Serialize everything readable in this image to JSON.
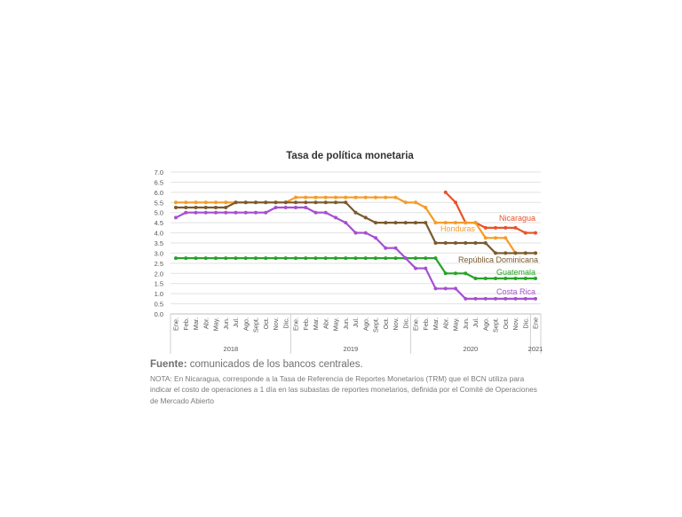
{
  "chart_data": {
    "type": "line",
    "title": "Tasa de política monetaria",
    "xlabel": "",
    "ylabel": "",
    "ylim": [
      0,
      7
    ],
    "yticks": [
      "0.0",
      "0.5",
      "1.0",
      "1.5",
      "2.0",
      "2.5",
      "3.0",
      "3.5",
      "4.0",
      "4.5",
      "5.0",
      "5.5",
      "6.0",
      "6.5",
      "7.0"
    ],
    "grid": true,
    "categories": [
      "Ene.",
      "Feb.",
      "Mar.",
      "Abr.",
      "May.",
      "Jun.",
      "Jul.",
      "Ago.",
      "Sept.",
      "Oct.",
      "Nov.",
      "Dic.",
      "Ene.",
      "Feb.",
      "Mar.",
      "Abr.",
      "May.",
      "Jun.",
      "Jul.",
      "Ago.",
      "Sept.",
      "Oct.",
      "Nov.",
      "Dic.",
      "Ene.",
      "Feb.",
      "Mar.",
      "Abr.",
      "May.",
      "Jun.",
      "Jul.",
      "Ago.",
      "Sept.",
      "Oct.",
      "Nov.",
      "Dic.",
      "Ene"
    ],
    "years": [
      "2018",
      "2019",
      "2020",
      "2021"
    ],
    "series": [
      {
        "name": "Nicaragua",
        "color": "#e8522a",
        "values": [
          null,
          null,
          null,
          null,
          null,
          null,
          null,
          null,
          null,
          null,
          null,
          null,
          null,
          null,
          null,
          null,
          null,
          null,
          null,
          null,
          null,
          null,
          null,
          null,
          null,
          null,
          null,
          6.0,
          5.5,
          4.5,
          4.5,
          4.25,
          4.25,
          4.25,
          4.25,
          4.0,
          4.0
        ]
      },
      {
        "name": "Honduras",
        "color": "#f39c29",
        "values": [
          5.5,
          5.5,
          5.5,
          5.5,
          5.5,
          5.5,
          5.5,
          5.5,
          5.5,
          5.5,
          5.5,
          5.5,
          5.75,
          5.75,
          5.75,
          5.75,
          5.75,
          5.75,
          5.75,
          5.75,
          5.75,
          5.75,
          5.75,
          5.5,
          5.5,
          5.25,
          4.5,
          4.5,
          4.5,
          4.5,
          4.5,
          3.75,
          3.75,
          3.75,
          3.0,
          3.0,
          3.0
        ]
      },
      {
        "name": "República Dominicana",
        "color": "#7a5a2e",
        "values": [
          5.25,
          5.25,
          5.25,
          5.25,
          5.25,
          5.25,
          5.5,
          5.5,
          5.5,
          5.5,
          5.5,
          5.5,
          5.5,
          5.5,
          5.5,
          5.5,
          5.5,
          5.5,
          5.0,
          4.75,
          4.5,
          4.5,
          4.5,
          4.5,
          4.5,
          4.5,
          3.5,
          3.5,
          3.5,
          3.5,
          3.5,
          3.5,
          3.0,
          3.0,
          3.0,
          3.0,
          3.0
        ]
      },
      {
        "name": "Guatemala",
        "color": "#27a327",
        "values": [
          2.75,
          2.75,
          2.75,
          2.75,
          2.75,
          2.75,
          2.75,
          2.75,
          2.75,
          2.75,
          2.75,
          2.75,
          2.75,
          2.75,
          2.75,
          2.75,
          2.75,
          2.75,
          2.75,
          2.75,
          2.75,
          2.75,
          2.75,
          2.75,
          2.75,
          2.75,
          2.75,
          2.0,
          2.0,
          2.0,
          1.75,
          1.75,
          1.75,
          1.75,
          1.75,
          1.75,
          1.75
        ]
      },
      {
        "name": "Costa Rica",
        "color": "#a64fd0",
        "values": [
          4.75,
          5.0,
          5.0,
          5.0,
          5.0,
          5.0,
          5.0,
          5.0,
          5.0,
          5.0,
          5.25,
          5.25,
          5.25,
          5.25,
          5.0,
          5.0,
          4.75,
          4.5,
          4.0,
          4.0,
          3.75,
          3.25,
          3.25,
          2.75,
          2.25,
          2.25,
          1.25,
          1.25,
          1.25,
          0.75,
          0.75,
          0.75,
          0.75,
          0.75,
          0.75,
          0.75,
          0.75
        ]
      }
    ]
  },
  "source": {
    "label": "Fuente:",
    "text": " comunicados de los bancos centrales.",
    "note": "NOTA: En Nicaragua, corresponde a la Tasa de Referencia de Reportes Monetarios (TRM) que el BCN utiliza para indicar el costo de operaciones a 1 día en las subastas de reportes monetarios, definida por el Comité de Operaciones de Mercado Abierto"
  }
}
